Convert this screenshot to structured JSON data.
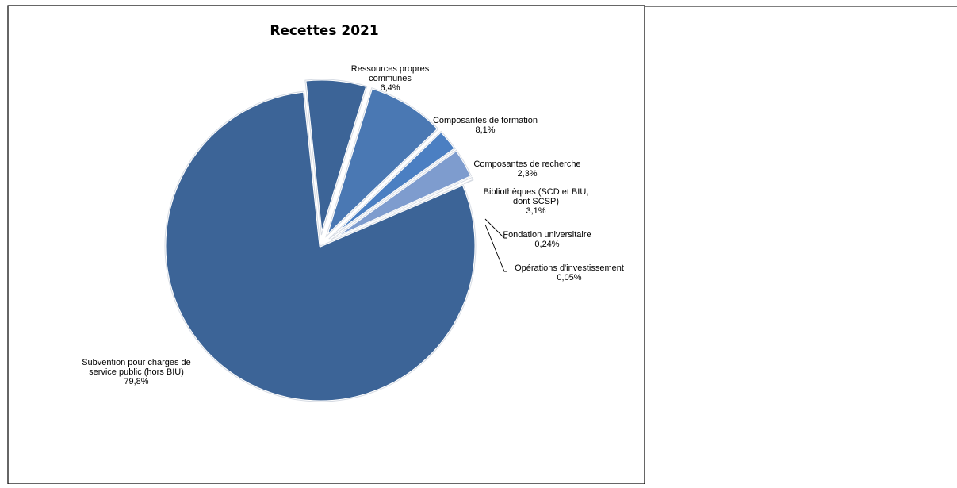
{
  "chart_data": {
    "type": "pie",
    "title": "Recettes 2021",
    "legend": "none",
    "slices": [
      {
        "label": "Ressources propres communes",
        "label_lines": [
          "Ressources propres",
          "communes"
        ],
        "value": 6.4,
        "value_label": "6,4%",
        "color": "#3c6497"
      },
      {
        "label": "Composantes de formation",
        "label_lines": [
          "Composantes de formation"
        ],
        "value": 8.1,
        "value_label": "8,1%",
        "color": "#4a78b3"
      },
      {
        "label": "Composantes de recherche",
        "label_lines": [
          "Composantes de recherche"
        ],
        "value": 2.3,
        "value_label": "2,3%",
        "color": "#4b7fc2"
      },
      {
        "label": "Bibliothèques (SCD et BIU, dont SCSP)",
        "label_lines": [
          "Bibliothèques (SCD et BIU,",
          "dont SCSP)"
        ],
        "value": 3.1,
        "value_label": "3,1%",
        "color": "#7e9cce"
      },
      {
        "label": "Fondation universitaire",
        "label_lines": [
          "Fondation universitaire"
        ],
        "value": 0.24,
        "value_label": "0,24%",
        "color": "#9cb2d8"
      },
      {
        "label": "Opérations d'investissement",
        "label_lines": [
          "Opérations d'investissement"
        ],
        "value": 0.05,
        "value_label": "0,05%",
        "color": "#b7c7e3"
      },
      {
        "label": "Subvention pour charges de service public (hors BIU)",
        "label_lines": [
          "Subvention pour charges de",
          "service public (hors BIU)"
        ],
        "value": 79.8,
        "value_label": "79,8%",
        "color": "#3c6497"
      }
    ]
  }
}
